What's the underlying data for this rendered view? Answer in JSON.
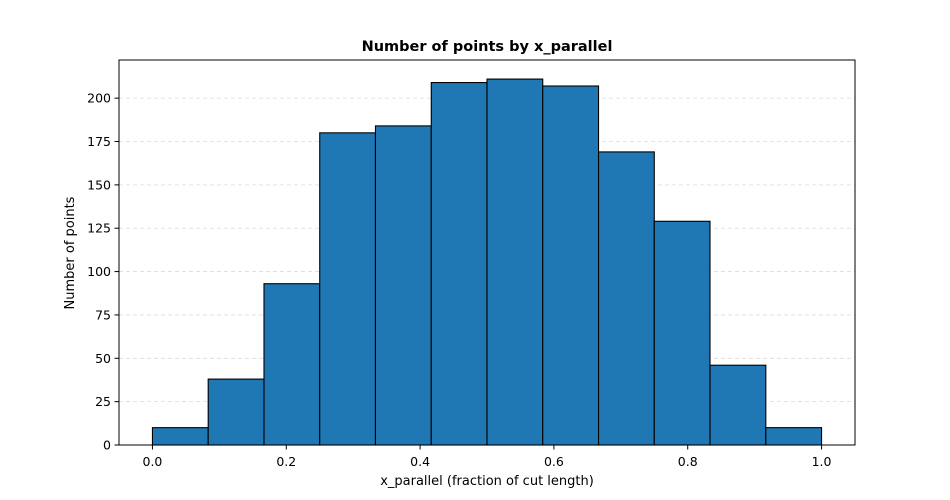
{
  "chart_data": {
    "type": "bar",
    "title": "Number of points by x_parallel",
    "xlabel": "x_parallel (fraction of cut length)",
    "ylabel": "Number of points",
    "xlim": [
      -0.05,
      1.05
    ],
    "ylim": [
      0,
      222
    ],
    "grid": "y-dashed",
    "bar_color": "#1f77b4",
    "edge_color": "#000000",
    "bin_edges": [
      0.0,
      0.0833,
      0.1667,
      0.25,
      0.3333,
      0.4167,
      0.5,
      0.5833,
      0.6667,
      0.75,
      0.8333,
      0.9167,
      1.0
    ],
    "values": [
      10,
      38,
      93,
      180,
      184,
      209,
      211,
      207,
      169,
      129,
      46,
      10
    ],
    "x_ticks": [
      0.0,
      0.2,
      0.4,
      0.6,
      0.8,
      1.0
    ],
    "x_tick_labels": [
      "0.0",
      "0.2",
      "0.4",
      "0.6",
      "0.8",
      "1.0"
    ],
    "y_ticks": [
      0,
      25,
      50,
      75,
      100,
      125,
      150,
      175,
      200
    ],
    "y_tick_labels": [
      "0",
      "25",
      "50",
      "75",
      "100",
      "125",
      "150",
      "175",
      "200"
    ]
  }
}
